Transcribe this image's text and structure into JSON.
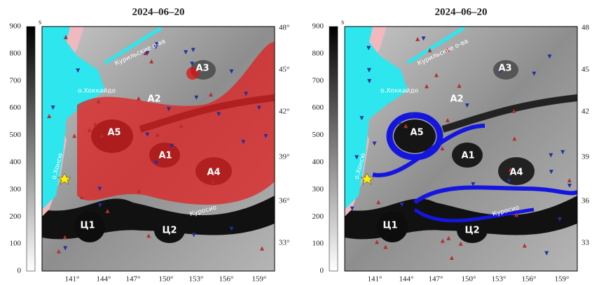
{
  "panels": [
    {
      "title": "2024–06–20",
      "colorbar_label": "s",
      "colorbar_ticks": [
        "900",
        "800",
        "700",
        "600",
        "500",
        "400",
        "300",
        "200",
        "100",
        "0"
      ],
      "lon_ticks": [
        "141°",
        "144°",
        "147°",
        "150°",
        "153°",
        "156°",
        "159°"
      ],
      "lat_ticks": [
        "48°",
        "45°",
        "42°",
        "39°",
        "36°",
        "33°"
      ],
      "labels": [
        "А3",
        "А2",
        "А5",
        "А1",
        "А4",
        "Ц1",
        "Ц2",
        "о.Хоккайдо",
        "о.Хонсю",
        "Курильские о-ва",
        "Куросио"
      ]
    },
    {
      "title": "2024–06–20",
      "colorbar_label": "s",
      "colorbar_ticks": [
        "900",
        "800",
        "700",
        "600",
        "500",
        "400",
        "300",
        "200",
        "100",
        "0"
      ],
      "lon_ticks": [
        "141°",
        "144°",
        "147°",
        "150°",
        "153°",
        "156°",
        "159°"
      ],
      "lat_ticks": [
        "48",
        "45",
        "42",
        "39",
        "36",
        "33"
      ],
      "labels": [
        "А3",
        "А2",
        "А5",
        "А1",
        "А4",
        "Ц1",
        "Ц2",
        "о.Хоккайдо",
        "о.Хонсю",
        "Курильские о-ва",
        "Куросио"
      ]
    }
  ]
}
